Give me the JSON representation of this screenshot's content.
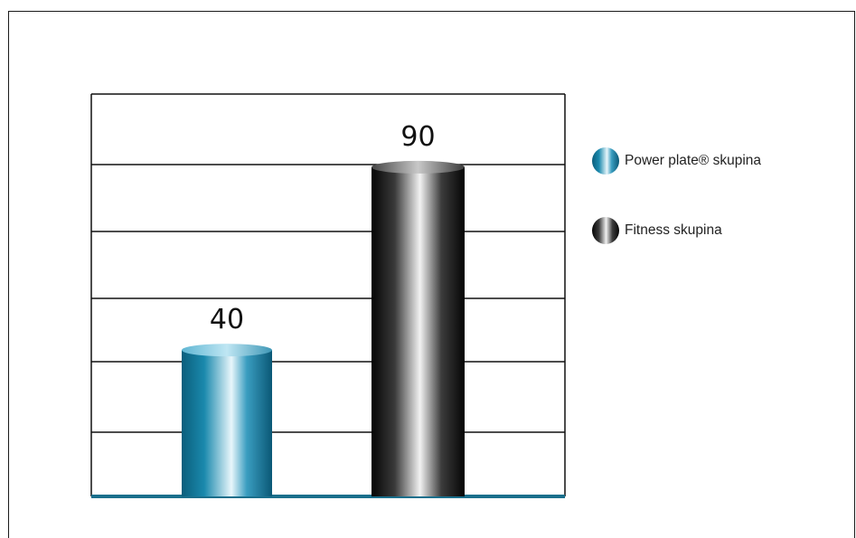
{
  "chart_data": {
    "type": "bar",
    "title": "",
    "xlabel": "",
    "ylabel": "",
    "categories": [
      "Power plate® skupina",
      "Fitness skupina"
    ],
    "values": [
      40,
      90
    ],
    "data_labels": [
      "40",
      "90"
    ],
    "ylim": [
      0,
      110
    ],
    "grid": true,
    "legend_position": "right",
    "series": [
      {
        "name": "Power plate® skupina",
        "value": 40,
        "color": "#0e6f8f"
      },
      {
        "name": "Fitness skupina",
        "value": 90,
        "color": "#111111"
      }
    ]
  },
  "legend": {
    "items": [
      {
        "label": "Power plate® skupina"
      },
      {
        "label": "Fitness skupina"
      }
    ]
  }
}
